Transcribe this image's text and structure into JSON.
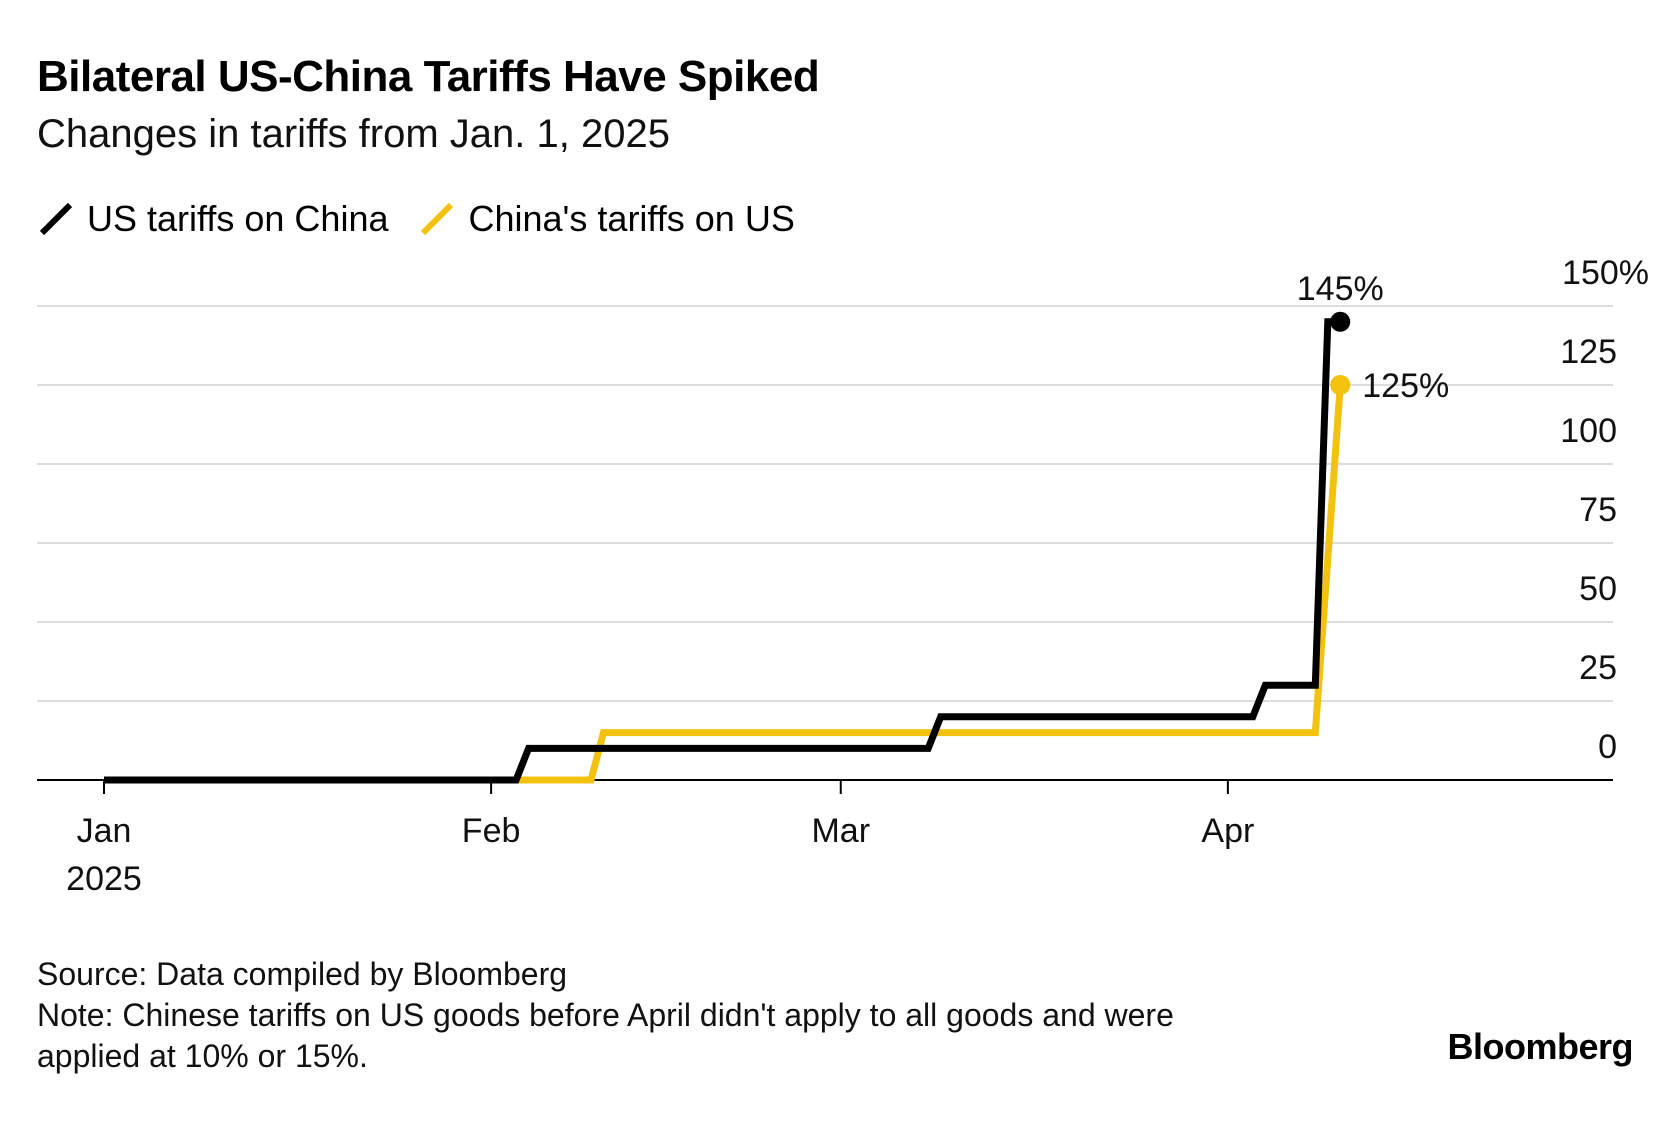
{
  "header": {
    "title": "Bilateral US-China Tariffs Have Spiked",
    "subtitle": "Changes in tariffs from Jan. 1, 2025"
  },
  "legend": [
    {
      "label": "US tariffs on China",
      "color": "#000000"
    },
    {
      "label": "China's tariffs on US",
      "color": "#F2C20F"
    }
  ],
  "chart_data": {
    "type": "line",
    "title": "Bilateral US-China Tariffs Have Spiked",
    "subtitle": "Changes in tariffs from Jan. 1, 2025",
    "x_axis": {
      "range": [
        "2025-01-01",
        "2025-04-30"
      ],
      "ticks": [
        {
          "date": "2025-01-01",
          "label": "Jan",
          "sublabel": "2025"
        },
        {
          "date": "2025-02-01",
          "label": "Feb"
        },
        {
          "date": "2025-03-01",
          "label": "Mar"
        },
        {
          "date": "2025-04-01",
          "label": "Apr"
        }
      ]
    },
    "y_axis": {
      "range": [
        0,
        150
      ],
      "position": "right",
      "ticks": [
        {
          "value": 0,
          "label": "0"
        },
        {
          "value": 25,
          "label": "25"
        },
        {
          "value": 50,
          "label": "50"
        },
        {
          "value": 75,
          "label": "75"
        },
        {
          "value": 100,
          "label": "100"
        },
        {
          "value": 125,
          "label": "125"
        },
        {
          "value": 150,
          "label": "150%"
        }
      ]
    },
    "grid": true,
    "series": [
      {
        "name": "US tariffs on China",
        "color": "#000000",
        "end_label": "145%",
        "points": [
          {
            "x": "2025-01-01",
            "y": 0
          },
          {
            "x": "2025-02-03",
            "y": 0
          },
          {
            "x": "2025-02-04",
            "y": 10
          },
          {
            "x": "2025-03-08",
            "y": 10
          },
          {
            "x": "2025-03-09",
            "y": 20
          },
          {
            "x": "2025-04-03",
            "y": 20
          },
          {
            "x": "2025-04-04",
            "y": 30
          },
          {
            "x": "2025-04-08",
            "y": 30
          },
          {
            "x": "2025-04-09",
            "y": 145
          },
          {
            "x": "2025-04-10",
            "y": 145
          }
        ]
      },
      {
        "name": "China's tariffs on US",
        "color": "#F2C20F",
        "end_label": "125%",
        "points": [
          {
            "x": "2025-01-01",
            "y": 0
          },
          {
            "x": "2025-02-09",
            "y": 0
          },
          {
            "x": "2025-02-10",
            "y": 15
          },
          {
            "x": "2025-04-08",
            "y": 15
          },
          {
            "x": "2025-04-10",
            "y": 125
          }
        ]
      }
    ]
  },
  "footer": {
    "source": "Source: Data compiled by Bloomberg",
    "note": "Note: Chinese tariffs on US goods before April didn't apply to all goods and were applied at 10% or 15%.",
    "brand": "Bloomberg"
  }
}
